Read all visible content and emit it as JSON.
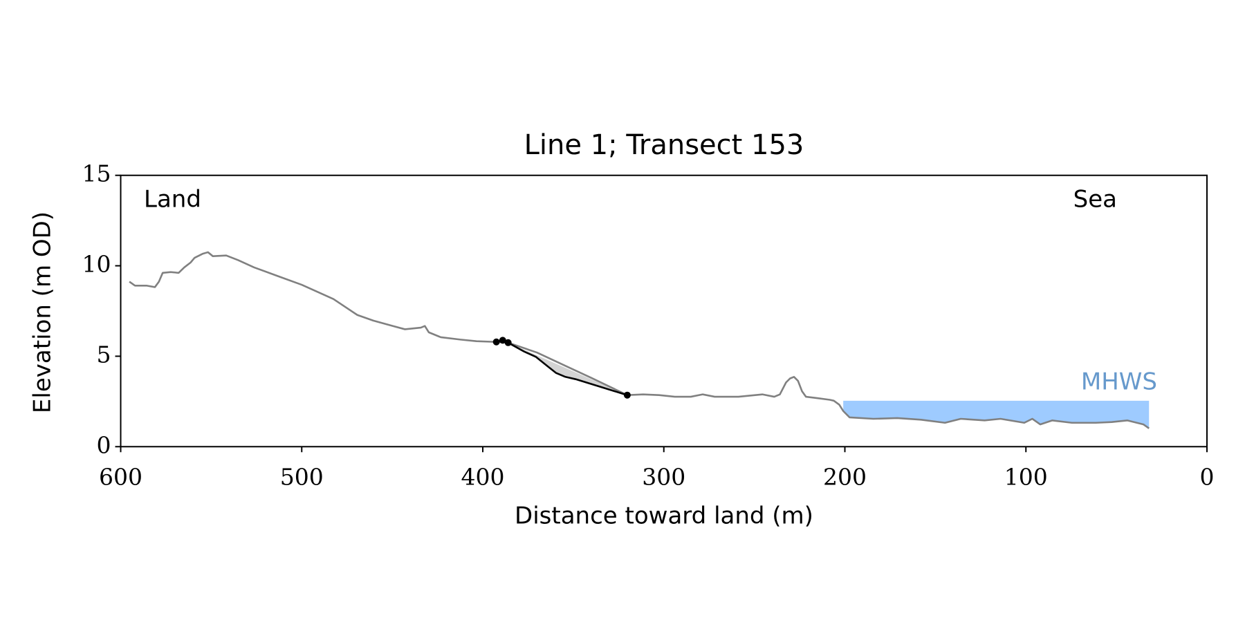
{
  "chart_data": {
    "type": "line",
    "title": "Line 1; Transect 153",
    "xlabel": "Distance toward land (m)",
    "ylabel": "Elevation (m OD)",
    "annotations": {
      "left": "Land",
      "right": "Sea",
      "level": "MHWS"
    },
    "xlim": [
      600,
      0
    ],
    "ylim": [
      0,
      15
    ],
    "xticks": [
      600,
      500,
      400,
      300,
      200,
      100,
      0
    ],
    "yticks": [
      0,
      5,
      10,
      15
    ],
    "profile": {
      "color": "#808080",
      "x": [
        595.2,
        592.1,
        585.5,
        581.1,
        578.9,
        576.8,
        572.4,
        568.0,
        564.9,
        561.4,
        559.2,
        554.8,
        551.8,
        549.1,
        541.7,
        535.1,
        526.3,
        513.2,
        500.0,
        482.5,
        469.3,
        460.5,
        449.6,
        443.0,
        434.2,
        432.0,
        429.8,
        423.2,
        412.3,
        403.5,
        392.5,
        386.0,
        370.0,
        355.0,
        340.0,
        320.2,
        311.4,
        302.6,
        293.9,
        285.1,
        278.5,
        271.9,
        258.8,
        245.6,
        239.0,
        235.9,
        232.5,
        230.3,
        228.1,
        225.9,
        223.7,
        221.5,
        214.9,
        208.3,
        206.1,
        203.1,
        200.9,
        197.4,
        184.2,
        171.1,
        157.9,
        144.7,
        136.0,
        122.8,
        114.0,
        100.9,
        96.5,
        92.1,
        85.5,
        74.6,
        61.4,
        52.6,
        43.9,
        35.1,
        32.0
      ],
      "y": [
        9.12,
        8.9,
        8.9,
        8.82,
        9.12,
        9.61,
        9.65,
        9.61,
        9.91,
        10.18,
        10.44,
        10.66,
        10.75,
        10.53,
        10.57,
        10.31,
        9.91,
        9.43,
        8.95,
        8.16,
        7.28,
        6.97,
        6.67,
        6.49,
        6.58,
        6.67,
        6.32,
        6.05,
        5.92,
        5.83,
        5.79,
        5.75,
        5.2,
        4.5,
        3.8,
        2.85,
        2.89,
        2.85,
        2.76,
        2.76,
        2.89,
        2.76,
        2.76,
        2.89,
        2.76,
        2.89,
        3.55,
        3.77,
        3.86,
        3.64,
        3.07,
        2.76,
        2.68,
        2.59,
        2.54,
        2.32,
        1.97,
        1.62,
        1.54,
        1.58,
        1.49,
        1.32,
        1.54,
        1.45,
        1.54,
        1.32,
        1.54,
        1.23,
        1.45,
        1.32,
        1.32,
        1.36,
        1.45,
        1.23,
        1.01
      ]
    },
    "segment": {
      "color": "#000000",
      "fill_color": "#d3d3d3",
      "x": [
        392.5,
        389.0,
        386.0,
        377.2,
        370.6,
        364.0,
        359.6,
        354.4,
        348.7,
        320.2
      ],
      "y": [
        5.79,
        5.88,
        5.75,
        5.26,
        4.96,
        4.43,
        4.08,
        3.86,
        3.73,
        2.85
      ],
      "points_x": [
        392.5,
        389.0,
        386.0,
        320.2
      ],
      "points_y": [
        5.79,
        5.88,
        5.75,
        2.85
      ]
    },
    "mhws": {
      "level": 2.54,
      "color": "#9ecbff",
      "label_color": "#6699cc"
    }
  }
}
